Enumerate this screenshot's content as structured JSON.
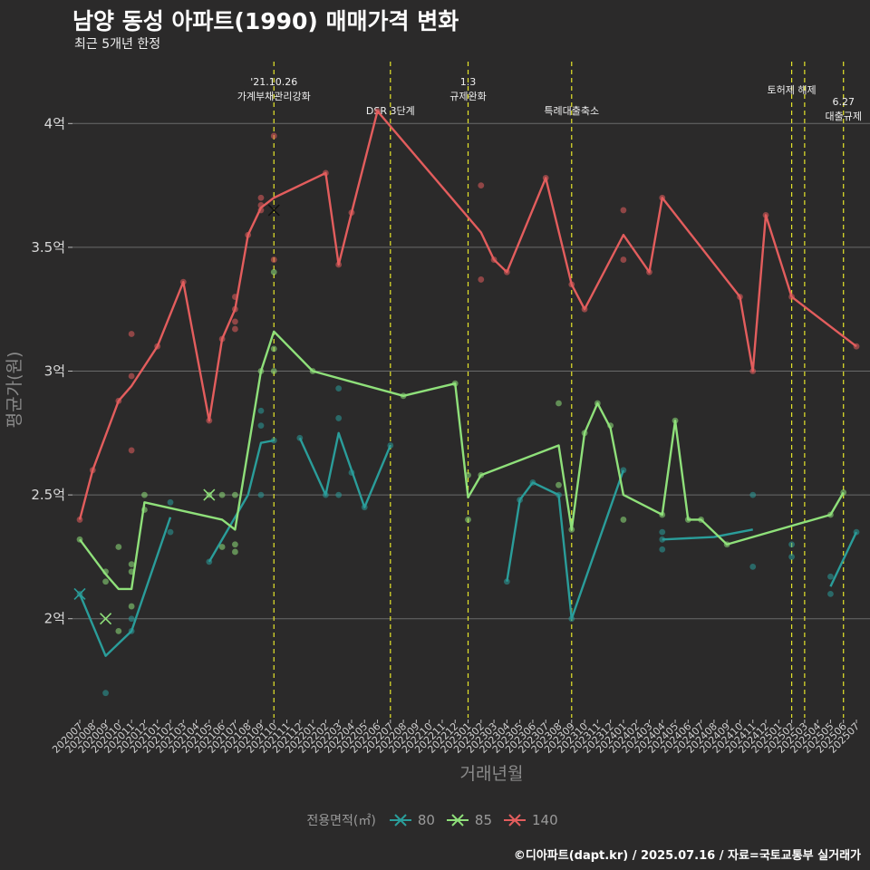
{
  "title": "남양 동성 아파트(1990) 매매가격 변화",
  "subtitle": "최근 5개년 한정",
  "caption": "©디아파트(dapt.kr) / 2025.07.16 / 자료=국토교통부 실거래가",
  "chart_data": {
    "type": "line",
    "xlabel": "거래년월",
    "ylabel": "평균가(원)",
    "ylim": [
      1.6,
      4.25
    ],
    "yticks": [
      {
        "v": 2.0,
        "label": "2억"
      },
      {
        "v": 2.5,
        "label": "2.5억"
      },
      {
        "v": 3.0,
        "label": "3억"
      },
      {
        "v": 3.5,
        "label": "3.5억"
      },
      {
        "v": 4.0,
        "label": "4억"
      }
    ],
    "grid": true,
    "legend_position": "bottom",
    "legend_title": "전용면적(㎡)",
    "categories": [
      "202007",
      "202008",
      "202009",
      "202010",
      "202011",
      "202012",
      "202101",
      "202102",
      "202103",
      "202104",
      "202105",
      "202106",
      "202107",
      "202108",
      "202109",
      "202110",
      "202111",
      "202112",
      "202201",
      "202202",
      "202203",
      "202204",
      "202205",
      "202206",
      "202207",
      "202208",
      "202209",
      "202210",
      "202211",
      "202212",
      "202301",
      "202302",
      "202303",
      "202304",
      "202305",
      "202306",
      "202307",
      "202308",
      "202309",
      "202310",
      "202311",
      "202312",
      "202401",
      "202402",
      "202403",
      "202404",
      "202405",
      "202406",
      "202407",
      "202408",
      "202409",
      "202410",
      "202411",
      "202412",
      "202501",
      "202502",
      "202503",
      "202504",
      "202505",
      "202506",
      "202507"
    ],
    "series": [
      {
        "name": "80",
        "color": "#2a9d9a",
        "line": [
          [
            "202007",
            2.1
          ],
          [
            "202009",
            1.85
          ],
          [
            "202011",
            1.95
          ],
          [
            "202102",
            2.41
          ],
          null,
          [
            "202105",
            2.23
          ],
          [
            "202108",
            2.5
          ],
          [
            "202109",
            2.71
          ],
          [
            "202110",
            2.72
          ],
          null,
          [
            "202112",
            2.73
          ],
          [
            "202202",
            2.5
          ],
          [
            "202203",
            2.75
          ],
          [
            "202205",
            2.45
          ],
          [
            "202207",
            2.7
          ],
          null,
          [
            "202304",
            2.15
          ],
          [
            "202305",
            2.48
          ],
          [
            "202306",
            2.55
          ],
          [
            "202308",
            2.5
          ],
          [
            "202309",
            2.0
          ],
          [
            "202401",
            2.6
          ],
          null,
          [
            "202404",
            2.32
          ],
          [
            "202408",
            2.33
          ],
          [
            "202411",
            2.36
          ],
          null,
          [
            "202505",
            2.13
          ],
          [
            "202507",
            2.35
          ]
        ],
        "points": [
          [
            "202007",
            2.1
          ],
          [
            "202009",
            1.7
          ],
          [
            "202011",
            1.95
          ],
          [
            "202011",
            2.0
          ],
          [
            "202102",
            2.35
          ],
          [
            "202102",
            2.47
          ],
          [
            "202105",
            2.23
          ],
          [
            "202109",
            2.5
          ],
          [
            "202109",
            2.78
          ],
          [
            "202109",
            2.84
          ],
          [
            "202110",
            2.72
          ],
          [
            "202112",
            2.73
          ],
          [
            "202202",
            2.5
          ],
          [
            "202203",
            2.5
          ],
          [
            "202203",
            2.81
          ],
          [
            "202203",
            2.93
          ],
          [
            "202204",
            2.59
          ],
          [
            "202205",
            2.45
          ],
          [
            "202207",
            2.7
          ],
          [
            "202304",
            2.15
          ],
          [
            "202305",
            2.48
          ],
          [
            "202306",
            2.55
          ],
          [
            "202308",
            2.5
          ],
          [
            "202309",
            2.0
          ],
          [
            "202401",
            2.6
          ],
          [
            "202404",
            2.28
          ],
          [
            "202404",
            2.32
          ],
          [
            "202404",
            2.35
          ],
          [
            "202411",
            2.21
          ],
          [
            "202411",
            2.5
          ],
          [
            "202502",
            2.25
          ],
          [
            "202502",
            2.3
          ],
          [
            "202505",
            2.1
          ],
          [
            "202505",
            2.17
          ],
          [
            "202507",
            2.35
          ]
        ],
        "cross": [
          [
            "202007",
            2.1
          ]
        ]
      },
      {
        "name": "85",
        "color": "#8fe07a",
        "line": [
          [
            "202007",
            2.32
          ],
          [
            "202009",
            2.18
          ],
          [
            "202010",
            2.12
          ],
          [
            "202011",
            2.12
          ],
          [
            "202012",
            2.47
          ],
          [
            "202106",
            2.4
          ],
          [
            "202107",
            2.36
          ],
          [
            "202109",
            3.0
          ],
          [
            "202110",
            3.16
          ],
          [
            "202201",
            3.0
          ],
          [
            "202208",
            2.9
          ],
          [
            "202212",
            2.95
          ],
          [
            "202301",
            2.49
          ],
          [
            "202302",
            2.58
          ],
          [
            "202308",
            2.7
          ],
          [
            "202309",
            2.36
          ],
          [
            "202310",
            2.75
          ],
          [
            "202311",
            2.87
          ],
          [
            "202312",
            2.77
          ],
          [
            "202401",
            2.5
          ],
          [
            "202404",
            2.42
          ],
          [
            "202405",
            2.8
          ],
          [
            "202406",
            2.4
          ],
          [
            "202407",
            2.4
          ],
          [
            "202409",
            2.3
          ],
          [
            "202505",
            2.42
          ],
          [
            "202506",
            2.51
          ]
        ],
        "points": [
          [
            "202007",
            2.32
          ],
          [
            "202009",
            2.19
          ],
          [
            "202009",
            2.15
          ],
          [
            "202010",
            1.95
          ],
          [
            "202010",
            2.29
          ],
          [
            "202011",
            2.05
          ],
          [
            "202011",
            2.19
          ],
          [
            "202011",
            2.22
          ],
          [
            "202012",
            2.5
          ],
          [
            "202012",
            2.44
          ],
          [
            "202105",
            2.5
          ],
          [
            "202106",
            2.5
          ],
          [
            "202106",
            2.29
          ],
          [
            "202107",
            2.27
          ],
          [
            "202107",
            2.3
          ],
          [
            "202107",
            2.5
          ],
          [
            "202109",
            3.0
          ],
          [
            "202110",
            3.0
          ],
          [
            "202110",
            3.09
          ],
          [
            "202110",
            3.4
          ],
          [
            "202201",
            3.0
          ],
          [
            "202208",
            2.9
          ],
          [
            "202212",
            2.95
          ],
          [
            "202301",
            2.4
          ],
          [
            "202301",
            2.58
          ],
          [
            "202302",
            2.58
          ],
          [
            "202308",
            2.87
          ],
          [
            "202308",
            2.54
          ],
          [
            "202309",
            2.36
          ],
          [
            "202310",
            2.75
          ],
          [
            "202311",
            2.87
          ],
          [
            "202312",
            2.78
          ],
          [
            "202401",
            2.4
          ],
          [
            "202404",
            2.42
          ],
          [
            "202405",
            2.8
          ],
          [
            "202406",
            2.4
          ],
          [
            "202407",
            2.4
          ],
          [
            "202409",
            2.3
          ],
          [
            "202505",
            2.42
          ],
          [
            "202506",
            2.51
          ]
        ],
        "cross": [
          [
            "202009",
            2.0
          ],
          [
            "202105",
            2.5
          ]
        ]
      },
      {
        "name": "140",
        "color": "#e35d5d",
        "line": [
          [
            "202007",
            2.4
          ],
          [
            "202008",
            2.6
          ],
          [
            "202010",
            2.88
          ],
          [
            "202011",
            2.94
          ],
          [
            "202101",
            3.1
          ],
          [
            "202103",
            3.36
          ],
          [
            "202105",
            2.8
          ],
          [
            "202106",
            3.13
          ],
          [
            "202107",
            3.25
          ],
          [
            "202108",
            3.55
          ],
          [
            "202109",
            3.66
          ],
          [
            "202110",
            3.7
          ],
          [
            "202202",
            3.8
          ],
          [
            "202203",
            3.43
          ],
          [
            "202204",
            3.64
          ],
          [
            "202206",
            4.05
          ],
          [
            "202302",
            3.56
          ],
          [
            "202303",
            3.45
          ],
          [
            "202304",
            3.4
          ],
          [
            "202307",
            3.78
          ],
          [
            "202309",
            3.35
          ],
          [
            "202310",
            3.25
          ],
          [
            "202401",
            3.55
          ],
          [
            "202403",
            3.4
          ],
          [
            "202404",
            3.7
          ],
          [
            "202410",
            3.3
          ],
          [
            "202411",
            3.0
          ],
          [
            "202412",
            3.63
          ],
          [
            "202502",
            3.3
          ],
          [
            "202507",
            3.1
          ]
        ],
        "points": [
          [
            "202007",
            2.4
          ],
          [
            "202008",
            2.6
          ],
          [
            "202010",
            2.88
          ],
          [
            "202011",
            2.68
          ],
          [
            "202011",
            2.98
          ],
          [
            "202011",
            3.15
          ],
          [
            "202101",
            3.1
          ],
          [
            "202103",
            3.36
          ],
          [
            "202105",
            2.8
          ],
          [
            "202106",
            3.13
          ],
          [
            "202107",
            3.17
          ],
          [
            "202107",
            3.2
          ],
          [
            "202107",
            3.25
          ],
          [
            "202107",
            3.3
          ],
          [
            "202108",
            3.55
          ],
          [
            "202109",
            3.65
          ],
          [
            "202109",
            3.67
          ],
          [
            "202109",
            3.7
          ],
          [
            "202110",
            3.45
          ],
          [
            "202110",
            3.95
          ],
          [
            "202202",
            3.8
          ],
          [
            "202203",
            3.43
          ],
          [
            "202204",
            3.64
          ],
          [
            "202206",
            4.05
          ],
          [
            "202302",
            3.37
          ],
          [
            "202302",
            3.75
          ],
          [
            "202303",
            3.45
          ],
          [
            "202304",
            3.4
          ],
          [
            "202307",
            3.78
          ],
          [
            "202309",
            3.35
          ],
          [
            "202310",
            3.25
          ],
          [
            "202401",
            3.45
          ],
          [
            "202401",
            3.65
          ],
          [
            "202403",
            3.4
          ],
          [
            "202404",
            3.7
          ],
          [
            "202410",
            3.3
          ],
          [
            "202411",
            3.0
          ],
          [
            "202412",
            3.63
          ],
          [
            "202502",
            3.3
          ],
          [
            "202507",
            3.1
          ]
        ],
        "cross": [
          [
            "202110",
            3.65
          ]
        ]
      }
    ],
    "events": [
      {
        "x": "202110",
        "label": "'21.10.26\n가계부채관리강화",
        "row": 0
      },
      {
        "x": "202207",
        "label": "DSR 3단계",
        "row": 2
      },
      {
        "x": "202301",
        "label": "1.3\n규제완화",
        "row": 0
      },
      {
        "x": "202309",
        "label": "특례대출축소",
        "row": 2
      },
      {
        "x": "202502",
        "label": "토허제 해제",
        "row": 1
      },
      {
        "x": "202503",
        "label": "",
        "row": 0
      },
      {
        "x": "202506",
        "label": "6.27\n대출규제",
        "row": 1.7
      }
    ]
  }
}
